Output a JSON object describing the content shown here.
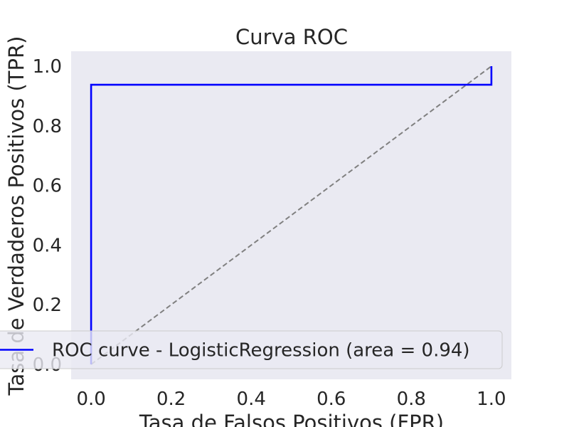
{
  "chart_data": {
    "type": "line",
    "title": "Curva ROC",
    "xlabel": "Tasa de Falsos Positivos (FPR)",
    "ylabel": "Tasa de Verdaderos Positivos (TPR)",
    "xlim": [
      -0.05,
      1.05
    ],
    "ylim": [
      -0.05,
      1.05
    ],
    "x_ticks": [
      "0.0",
      "0.2",
      "0.4",
      "0.6",
      "0.8",
      "1.0"
    ],
    "y_ticks": [
      "0.0",
      "0.2",
      "0.4",
      "0.6",
      "0.8",
      "1.0"
    ],
    "grid": false,
    "legend_position": "lower-right",
    "background_color": "#eaeaf2",
    "series": [
      {
        "name": "ROC curve - LogisticRegression (area = 0.94)",
        "color": "#0000ff",
        "style": "solid",
        "x": [
          0.0,
          0.0,
          0.0,
          1.0,
          1.0
        ],
        "y": [
          0.0,
          0.0,
          0.9375,
          0.9375,
          1.0
        ]
      },
      {
        "name": "",
        "color": "#808080",
        "style": "dashed",
        "x": [
          0.0,
          1.0
        ],
        "y": [
          0.0,
          1.0
        ]
      }
    ]
  }
}
